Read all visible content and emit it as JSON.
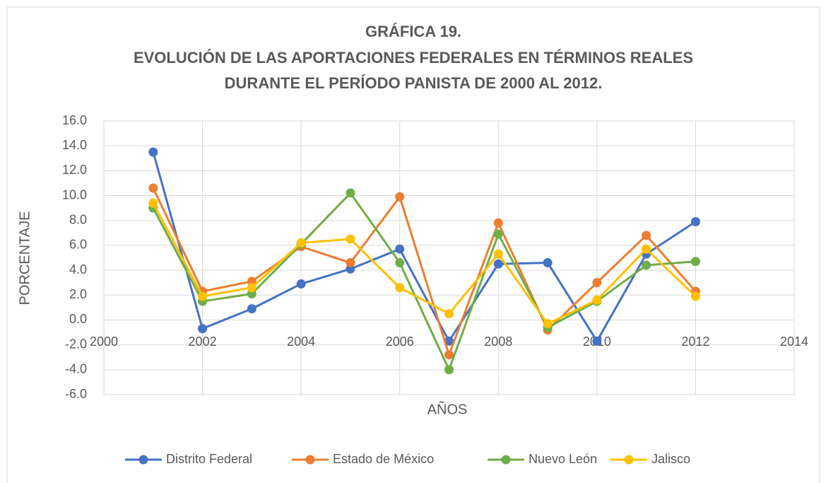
{
  "chart_data": {
    "type": "line",
    "title": [
      "GRÁFICA 19.",
      "EVOLUCIÓN DE LAS APORTACIONES FEDERALES EN TÉRMINOS REALES",
      "DURANTE EL PERÍODO PANISTA DE 2000 AL 2012."
    ],
    "x_label": "AÑOS",
    "y_label": "PORCENTAJE",
    "x": [
      2001,
      2002,
      2003,
      2004,
      2005,
      2006,
      2007,
      2008,
      2009,
      2010,
      2011,
      2012
    ],
    "series": [
      {
        "name": "Distrito Federal",
        "color": "#4472c4",
        "values": [
          13.5,
          -0.7,
          0.9,
          2.9,
          4.1,
          5.7,
          -1.7,
          4.5,
          4.6,
          -1.7,
          5.3,
          7.9
        ]
      },
      {
        "name": "Estado de México",
        "color": "#ed7d31",
        "values": [
          10.6,
          2.3,
          3.1,
          5.9,
          4.6,
          9.9,
          -2.8,
          7.8,
          -0.8,
          3.0,
          6.8,
          2.3
        ]
      },
      {
        "name": "Nuevo León",
        "color": "#70ad47",
        "values": [
          9.0,
          1.5,
          2.1,
          6.1,
          10.2,
          4.6,
          -4.0,
          6.9,
          -0.6,
          1.5,
          4.4,
          4.7
        ]
      },
      {
        "name": "Jalisco",
        "color": "#ffc000",
        "values": [
          9.4,
          1.9,
          2.6,
          6.2,
          6.5,
          2.6,
          0.5,
          5.3,
          -0.3,
          1.6,
          5.7,
          1.9
        ]
      }
    ],
    "xlim": [
      2000,
      2014
    ],
    "xticks": [
      2000,
      2002,
      2004,
      2006,
      2008,
      2010,
      2012,
      2014
    ],
    "ylim": [
      -6,
      16
    ],
    "yticks": [
      {
        "value": -6,
        "label": "-6.0"
      },
      {
        "value": -4,
        "label": "-4.0"
      },
      {
        "value": -2,
        "label": "-2.0"
      },
      {
        "value": 0,
        "label": "0.0"
      },
      {
        "value": 2,
        "label": "2.0"
      },
      {
        "value": 4,
        "label": "4.0"
      },
      {
        "value": 6,
        "label": "6.0"
      },
      {
        "value": 8,
        "label": "8.0"
      },
      {
        "value": 10,
        "label": "10.0"
      },
      {
        "value": 12,
        "label": "12.0"
      },
      {
        "value": 14,
        "label": "14.0"
      },
      {
        "value": 16,
        "label": "16.0"
      }
    ],
    "grid": true,
    "legend": "bottom"
  }
}
